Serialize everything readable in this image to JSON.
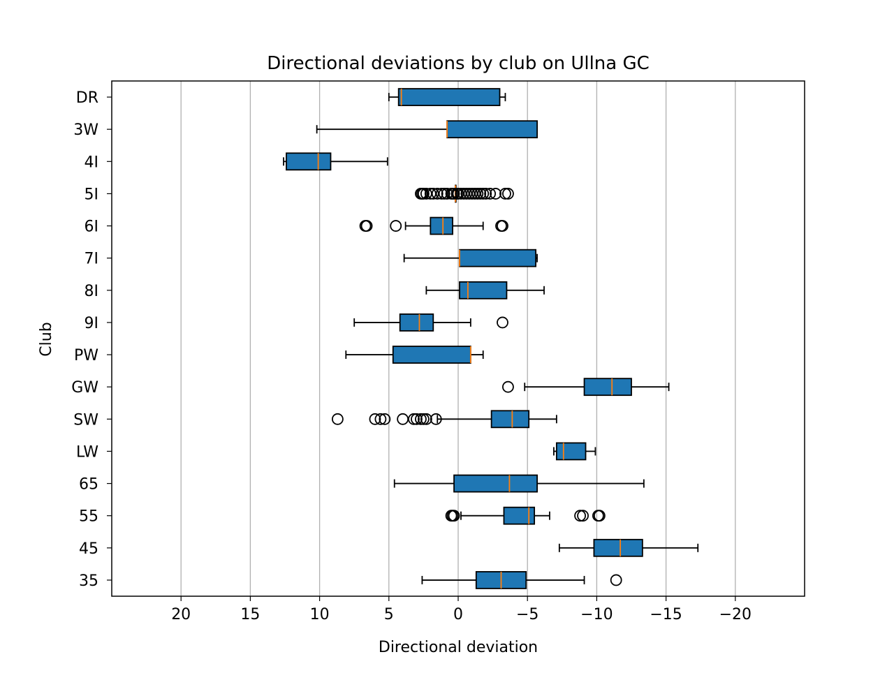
{
  "chart_data": {
    "type": "boxplot",
    "orientation": "horizontal",
    "title": "Directional deviations by club on Ullna GC",
    "xlabel": "Directional deviation",
    "ylabel": "Club",
    "xlim": [
      25,
      -25
    ],
    "x_inverted": true,
    "x_ticks": [
      20,
      15,
      10,
      5,
      0,
      -5,
      -10,
      -15,
      -20
    ],
    "x_tick_labels": [
      "20",
      "15",
      "10",
      "5",
      "0",
      "−5",
      "−10",
      "−15",
      "−20"
    ],
    "grid": "vertical",
    "colors": {
      "box_fill": "#1f77b4",
      "median": "#ff7f0e",
      "grid": "#b0b0b0",
      "outline": "#000000"
    },
    "categories": [
      "DR",
      "3W",
      "4I",
      "5I",
      "6I",
      "7I",
      "8I",
      "9I",
      "PW",
      "GW",
      "SW",
      "LW",
      "65",
      "55",
      "45",
      "35"
    ],
    "boxes": [
      {
        "label": "DR",
        "whislo": -3.4,
        "q1": -3.0,
        "median": 4.1,
        "q3": 4.3,
        "whishi": 5.0,
        "fliers": []
      },
      {
        "label": "3W",
        "whislo": -5.7,
        "q1": -5.7,
        "median": 0.8,
        "q3": 0.8,
        "whishi": 10.2,
        "fliers": []
      },
      {
        "label": "4I",
        "whislo": 5.1,
        "q1": 9.2,
        "median": 10.1,
        "q3": 12.4,
        "whishi": 12.6,
        "fliers": []
      },
      {
        "label": "5I",
        "whislo": 0.2,
        "q1": 0.2,
        "median": 0.2,
        "q3": 0.2,
        "whishi": 0.2,
        "fliers": [
          2.7,
          2.6,
          2.5,
          2.3,
          2.0,
          1.8,
          1.5,
          1.2,
          1.0,
          0.8,
          0.5,
          0.4,
          0.3,
          0.1,
          0.0,
          -0.2,
          -0.4,
          -0.6,
          -0.8,
          -1.0,
          -1.2,
          -1.4,
          -1.6,
          -1.8,
          -2.0,
          -2.3,
          -2.7,
          -3.4,
          -3.6
        ]
      },
      {
        "label": "6I",
        "whislo": -1.8,
        "q1": 0.4,
        "median": 1.1,
        "q3": 2.0,
        "whishi": 3.8,
        "fliers": [
          6.7,
          6.6,
          4.5,
          -3.1,
          -3.2
        ]
      },
      {
        "label": "7I",
        "whislo": -5.7,
        "q1": -5.6,
        "median": -0.1,
        "q3": -0.1,
        "whishi": 3.9,
        "fliers": []
      },
      {
        "label": "8I",
        "whislo": -6.2,
        "q1": -3.5,
        "median": -0.7,
        "q3": -0.1,
        "whishi": 2.3,
        "fliers": []
      },
      {
        "label": "9I",
        "whislo": -0.9,
        "q1": 1.8,
        "median": 2.8,
        "q3": 4.2,
        "whishi": 7.5,
        "fliers": [
          -3.2
        ]
      },
      {
        "label": "PW",
        "whislo": -1.8,
        "q1": -0.9,
        "median": -0.9,
        "q3": 4.7,
        "whishi": 8.1,
        "fliers": []
      },
      {
        "label": "GW",
        "whislo": -15.2,
        "q1": -12.5,
        "median": -11.1,
        "q3": -9.1,
        "whishi": -4.8,
        "fliers": [
          -3.6
        ]
      },
      {
        "label": "SW",
        "whislo": -7.1,
        "q1": -5.1,
        "median": -3.9,
        "q3": -2.4,
        "whishi": 1.5,
        "fliers": [
          8.7,
          6.0,
          5.6,
          5.3,
          4.0,
          3.2,
          3.0,
          2.7,
          2.5,
          2.3,
          1.6
        ]
      },
      {
        "label": "LW",
        "whislo": -9.9,
        "q1": -9.2,
        "median": -7.6,
        "q3": -7.1,
        "whishi": -6.9,
        "fliers": []
      },
      {
        "label": "65",
        "whislo": -13.4,
        "q1": -5.7,
        "median": -3.7,
        "q3": 0.3,
        "whishi": 4.6,
        "fliers": []
      },
      {
        "label": "55",
        "whislo": -6.6,
        "q1": -5.5,
        "median": -5.1,
        "q3": -3.3,
        "whishi": -0.2,
        "fliers": [
          0.5,
          0.4,
          0.3,
          -8.8,
          -9.0,
          -10.1,
          -10.2
        ]
      },
      {
        "label": "45",
        "whislo": -17.3,
        "q1": -13.3,
        "median": -11.7,
        "q3": -9.8,
        "whishi": -7.3,
        "fliers": []
      },
      {
        "label": "35",
        "whislo": -9.1,
        "q1": -4.9,
        "median": -3.1,
        "q3": -1.3,
        "whishi": 2.6,
        "fliers": [
          -11.4
        ]
      }
    ]
  }
}
